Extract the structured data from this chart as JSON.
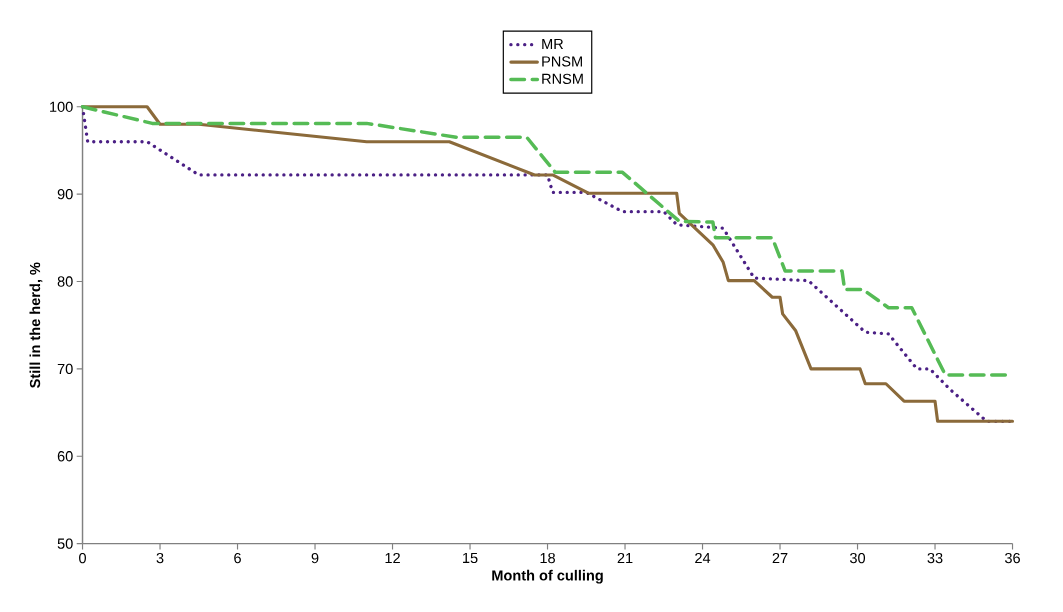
{
  "chart_data": {
    "type": "line",
    "xlabel": "Month of culling",
    "ylabel": "Still in the herd, %",
    "xlim": [
      0,
      36
    ],
    "ylim": [
      50,
      100
    ],
    "xticks": [
      0,
      3,
      6,
      9,
      12,
      15,
      18,
      21,
      24,
      27,
      30,
      33,
      36
    ],
    "yticks": [
      50,
      60,
      70,
      80,
      90,
      100
    ],
    "legend": "top",
    "grid": false,
    "marker": "none",
    "series": [
      {
        "name": "MR",
        "color": "#4b2085",
        "line_style": "dotted",
        "x": [
          0,
          0.2,
          2.5,
          4.5,
          18,
          18.2,
          19.5,
          20.9,
          22.5,
          23,
          24.8,
          26,
          28.1,
          30.3,
          31.2,
          32.3,
          32.8,
          33.6,
          35,
          36
        ],
        "values": [
          100,
          96,
          96,
          92.2,
          92.2,
          90.2,
          90.2,
          88,
          88,
          86.5,
          86.1,
          80.4,
          80.1,
          74.2,
          74,
          70,
          70,
          67.6,
          64,
          64
        ]
      },
      {
        "name": "PNSM",
        "color": "#8b6a3a",
        "line_style": "solid",
        "x": [
          0,
          2.5,
          3,
          4.5,
          11,
          14.2,
          17.5,
          18.2,
          19.6,
          23,
          23.1,
          24.4,
          24.8,
          25,
          26,
          26.7,
          27,
          27.1,
          27.6,
          28.2,
          30.1,
          30.3,
          31.1,
          31.8,
          33,
          33.1,
          36
        ],
        "values": [
          100,
          100,
          98,
          98,
          96,
          96,
          92.2,
          92.2,
          90.1,
          90.1,
          87.8,
          84.2,
          82.2,
          80.1,
          80.1,
          78.2,
          78.2,
          76.3,
          74.4,
          70,
          70,
          68.3,
          68.3,
          66.3,
          66.3,
          64,
          64
        ]
      },
      {
        "name": "RNSM",
        "color": "#55bb55",
        "line_style": "dashed",
        "x": [
          0,
          2.7,
          11,
          14.5,
          17.2,
          18.3,
          20.9,
          23.1,
          24.4,
          24.5,
          26.7,
          27.2,
          29.4,
          29.5,
          30.2,
          31.2,
          32.1,
          33.4,
          36
        ],
        "values": [
          100,
          98.1,
          98.1,
          96.5,
          96.5,
          92.5,
          92.5,
          86.9,
          86.8,
          85,
          85,
          81.2,
          81.2,
          79.1,
          79.1,
          77,
          77,
          69.3,
          69.3
        ]
      }
    ]
  }
}
